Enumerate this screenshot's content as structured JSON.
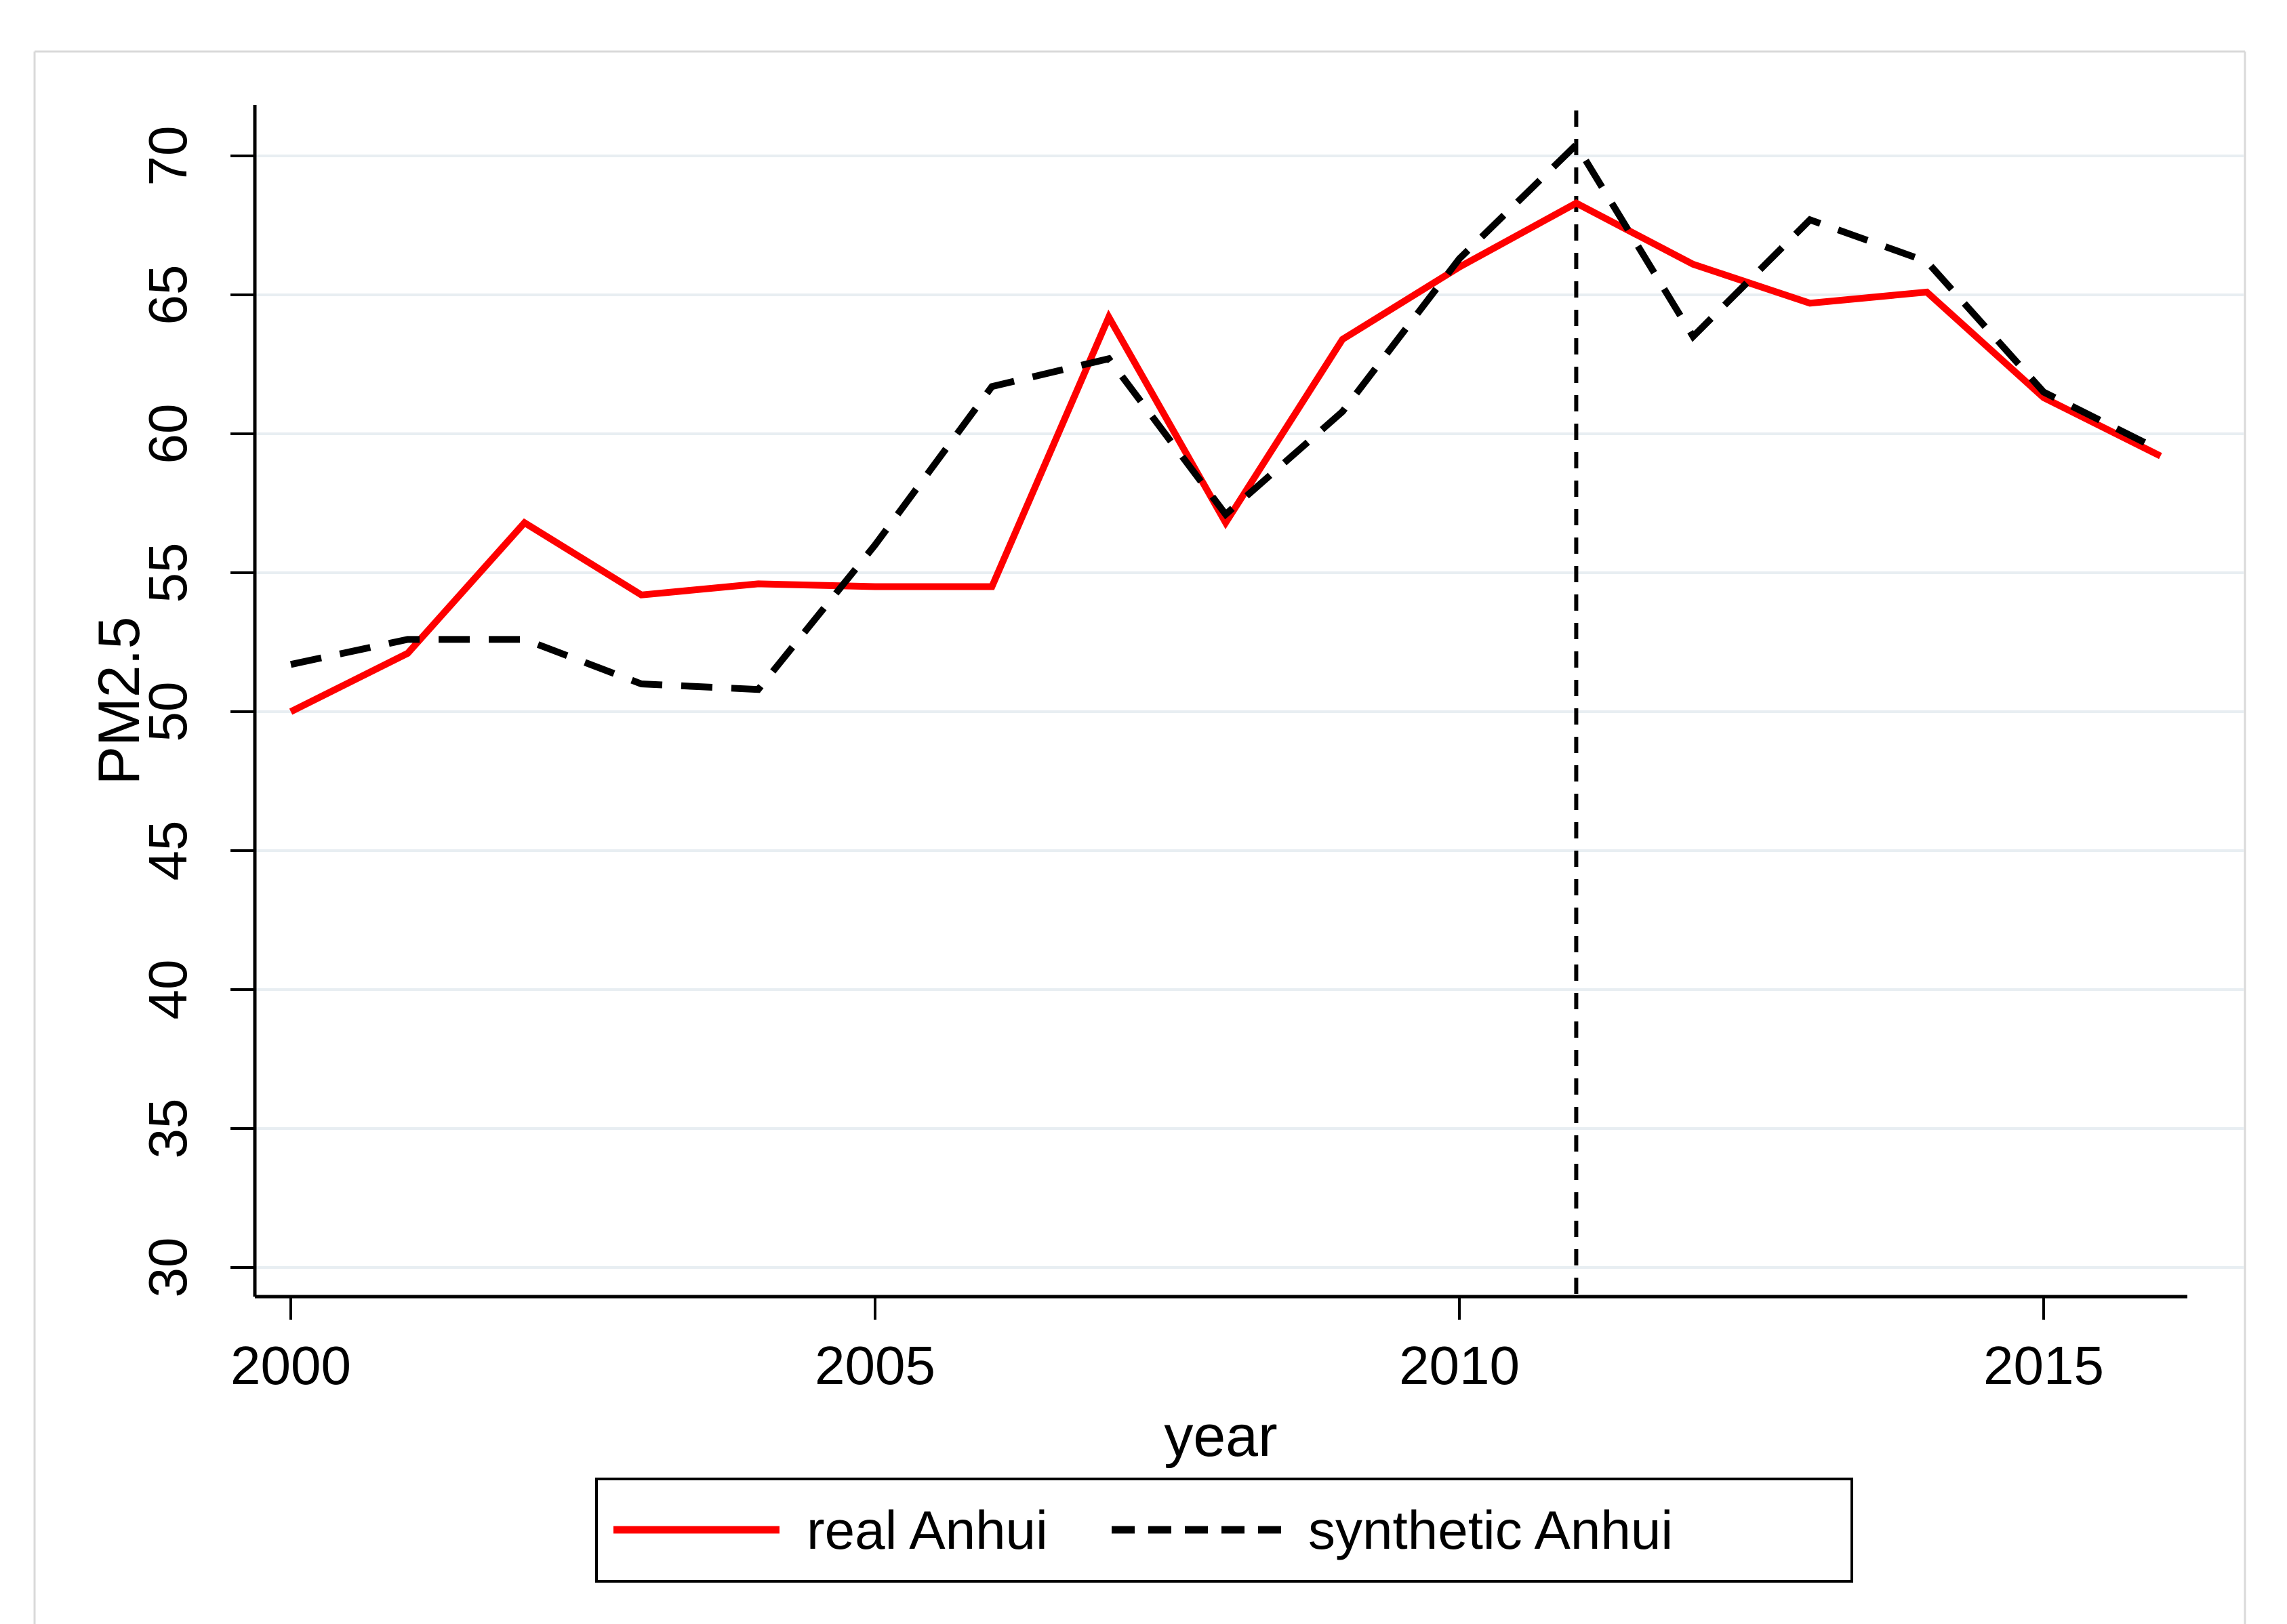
{
  "figure": {
    "background": "#ffffff",
    "border_color": "#d9d9d9",
    "plot_bg": "#ffffff"
  },
  "axes": {
    "x_label": "year",
    "y_label": "PM2.5",
    "x_tick_labels": [
      "2000",
      "2005",
      "2010",
      "2015"
    ],
    "x_tick_values": [
      2000,
      2005,
      2010,
      2015
    ],
    "y_tick_labels": [
      "30",
      "35",
      "40",
      "45",
      "50",
      "55",
      "60",
      "65",
      "70"
    ],
    "y_tick_values": [
      30,
      35,
      40,
      45,
      50,
      55,
      60,
      65,
      70
    ],
    "grid_color": "#e8eef2",
    "axis_color": "#000000",
    "tick_color": "#000000"
  },
  "legend": {
    "items": [
      {
        "label": "real Anhui",
        "color": "#fe0000",
        "dash": "solid"
      },
      {
        "label": "synthetic Anhui",
        "color": "#000000",
        "dash": "dashed"
      }
    ]
  },
  "chart_data": {
    "type": "line",
    "title": "",
    "xlabel": "year",
    "ylabel": "PM2.5",
    "x": [
      2000,
      2001,
      2002,
      2003,
      2004,
      2005,
      2006,
      2007,
      2008,
      2009,
      2010,
      2011,
      2012,
      2013,
      2014,
      2015,
      2016
    ],
    "series": [
      {
        "name": "real Anhui",
        "color": "#fe0000",
        "style": "solid",
        "values": [
          50.0,
          52.1,
          56.8,
          54.2,
          54.6,
          54.5,
          54.5,
          64.2,
          56.8,
          63.4,
          66.0,
          68.3,
          66.1,
          64.7,
          65.1,
          61.3,
          59.2
        ]
      },
      {
        "name": "synthetic Anhui",
        "color": "#000000",
        "style": "dashed",
        "values": [
          51.7,
          52.6,
          52.6,
          51.0,
          50.8,
          56.0,
          61.7,
          62.7,
          57.1,
          60.8,
          66.3,
          70.4,
          63.5,
          67.7,
          66.2,
          61.5,
          59.4
        ]
      }
    ],
    "ylim": [
      28.9,
      72.0
    ],
    "xlim": [
      2000,
      2016.4
    ],
    "grid": true,
    "legend_position": "bottom-center",
    "vline_x": 2011
  }
}
